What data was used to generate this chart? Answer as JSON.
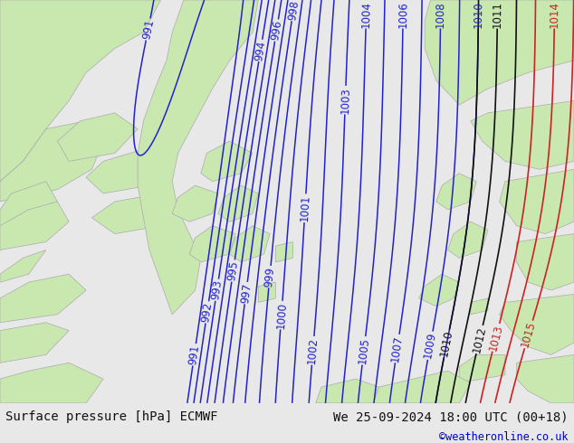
{
  "title_left": "Surface pressure [hPa] ECMWF",
  "title_right": "We 25-09-2024 18:00 UTC (00+18)",
  "credit": "©weatheronline.co.uk",
  "bg_color": "#e8e8e8",
  "land_color": "#c8e8b0",
  "land_edge_color": "#aaaaaa",
  "sea_color": "#e0e0e0",
  "contour_color_blue": "#2222cc",
  "contour_color_red": "#cc2222",
  "contour_color_black": "#111111",
  "footer_bg": "#ffffff",
  "footer_text_color": "#111111",
  "credit_color": "#0000cc",
  "label_fontsize": 8.5,
  "footer_fontsize": 10,
  "credit_fontsize": 8.5,
  "figsize": [
    6.34,
    4.9
  ],
  "dpi": 100
}
